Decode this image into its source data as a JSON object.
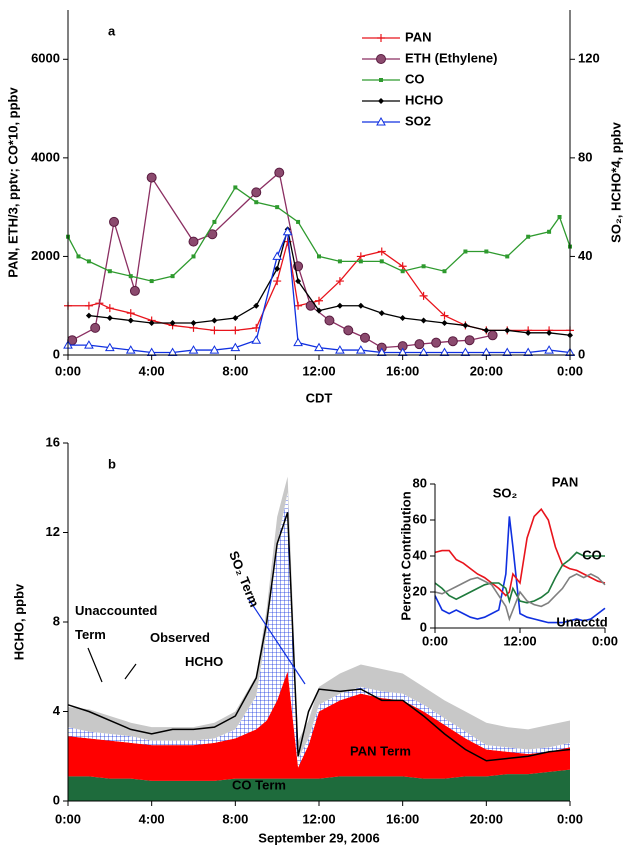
{
  "chart_data": [
    {
      "type": "line",
      "label": "a",
      "xlabel": "CDT",
      "ylabel": "PAN, ETH/3, pptv; CO*10, ppbv",
      "y2label": "SO₂, HCHO*4, ppbv",
      "xlim": [
        0,
        24
      ],
      "xticks": [
        {
          "value": 0,
          "label": "0:00"
        },
        {
          "value": 4,
          "label": "4:00"
        },
        {
          "value": 8,
          "label": "8:00"
        },
        {
          "value": 12,
          "label": "12:00"
        },
        {
          "value": 16,
          "label": "16:00"
        },
        {
          "value": 20,
          "label": "20:00"
        },
        {
          "value": 24,
          "label": "0:00"
        }
      ],
      "ylim": [
        0,
        7000
      ],
      "yticks": [
        0,
        2000,
        4000,
        6000
      ],
      "y2lim": [
        0,
        140
      ],
      "y2ticks": [
        0,
        40,
        80,
        120
      ],
      "legend": "top",
      "series": [
        {
          "name": "PAN",
          "color": "#e8141c",
          "marker": "plus",
          "x": [
            0,
            1,
            1.5,
            2,
            3,
            4,
            5,
            6,
            7,
            8,
            9,
            10,
            10.5,
            11,
            12,
            13,
            14,
            15,
            16,
            17,
            18,
            19,
            20,
            21,
            22,
            23,
            24
          ],
          "values": [
            1000,
            1000,
            1050,
            950,
            850,
            700,
            600,
            550,
            500,
            500,
            550,
            1500,
            2300,
            1000,
            1100,
            1500,
            2000,
            2100,
            1800,
            1200,
            800,
            600,
            500,
            500,
            500,
            500,
            500
          ]
        },
        {
          "name": "ETH (Ethylene)",
          "color": "#8b2f62",
          "marker": "circle",
          "x": [
            0.2,
            1.3,
            2.2,
            3.2,
            4,
            6,
            6.9,
            9,
            10.1,
            11,
            11.6,
            12.5,
            13.4,
            14.2,
            15,
            16,
            16.8,
            17.6,
            18.4,
            19.2,
            20.3
          ],
          "values": [
            300,
            550,
            2700,
            1300,
            3600,
            2300,
            2450,
            3300,
            3700,
            1800,
            1000,
            700,
            500,
            350,
            150,
            180,
            220,
            250,
            280,
            300,
            400
          ]
        },
        {
          "name": "CO",
          "color": "#2e9a2e",
          "marker": "square",
          "x": [
            0,
            0.5,
            1,
            2,
            3,
            4,
            5,
            6,
            7,
            8,
            9,
            10,
            11,
            12,
            13,
            14,
            15,
            16,
            17,
            18,
            19,
            20,
            21,
            22,
            23,
            23.5,
            24
          ],
          "values": [
            2400,
            2000,
            1900,
            1700,
            1600,
            1500,
            1600,
            2000,
            2700,
            3400,
            3100,
            3000,
            2700,
            2000,
            1900,
            1900,
            1900,
            1700,
            1800,
            1700,
            2100,
            2100,
            2000,
            2400,
            2500,
            2800,
            2200
          ]
        },
        {
          "name": "HCHO",
          "color": "#000000",
          "marker": "diamond",
          "axis": "y2",
          "x": [
            1,
            2,
            3,
            4,
            5,
            6,
            7,
            8,
            9,
            10,
            10.5,
            11,
            12,
            13,
            14,
            15,
            16,
            17,
            18,
            19,
            20,
            21,
            22,
            23,
            24
          ],
          "values": [
            16,
            15,
            14,
            13,
            13,
            13,
            14,
            15,
            20,
            35,
            51,
            30,
            18,
            20,
            20,
            17,
            15,
            14,
            13,
            12,
            10,
            10,
            9,
            9,
            8
          ]
        },
        {
          "name": "SO2",
          "color": "#1030e0",
          "marker": "triangle",
          "axis": "y2",
          "x": [
            0,
            1,
            2,
            3,
            4,
            5,
            6,
            7,
            8,
            9,
            10,
            10.5,
            11,
            12,
            13,
            14,
            15,
            16,
            17,
            18,
            19,
            20,
            21,
            22,
            23,
            24
          ],
          "values": [
            4,
            4,
            3,
            2,
            1,
            1,
            2,
            2,
            3,
            6,
            40,
            50,
            5,
            3,
            2,
            2,
            1,
            1,
            1,
            1,
            1,
            1,
            1,
            1,
            2,
            1
          ]
        }
      ]
    },
    {
      "type": "area",
      "label": "b",
      "xlabel": "September 29, 2006",
      "ylabel": "HCHO, ppbv",
      "stacked": true,
      "xlim": [
        0,
        24
      ],
      "xticks": [
        {
          "value": 0,
          "label": "0:00"
        },
        {
          "value": 4,
          "label": "4:00"
        },
        {
          "value": 8,
          "label": "8:00"
        },
        {
          "value": 12,
          "label": "12:00"
        },
        {
          "value": 16,
          "label": "16:00"
        },
        {
          "value": 20,
          "label": "20:00"
        },
        {
          "value": 24,
          "label": "0:00"
        }
      ],
      "ylim": [
        0,
        16
      ],
      "yticks": [
        0,
        4,
        8,
        12,
        16
      ],
      "x": [
        0,
        1,
        2,
        3,
        4,
        5,
        6,
        7,
        8,
        9,
        9.5,
        10,
        10.5,
        11,
        11.5,
        12,
        13,
        14,
        15,
        16,
        17,
        18,
        19,
        20,
        21,
        22,
        23,
        24
      ],
      "series": [
        {
          "name": "CO Term",
          "color": "#1e6b3c",
          "values": [
            1.1,
            1.1,
            1.0,
            1.0,
            0.9,
            0.9,
            0.9,
            0.9,
            1.0,
            1.0,
            1.0,
            1.0,
            1.0,
            1.0,
            1.0,
            1.0,
            1.1,
            1.1,
            1.1,
            1.1,
            1.0,
            1.0,
            1.1,
            1.1,
            1.2,
            1.2,
            1.3,
            1.4
          ]
        },
        {
          "name": "PAN Term",
          "color": "#ff0000",
          "values": [
            1.8,
            1.7,
            1.7,
            1.6,
            1.6,
            1.6,
            1.6,
            1.7,
            1.8,
            2.2,
            2.6,
            3.5,
            4.8,
            0.5,
            1.5,
            3.0,
            3.4,
            3.7,
            3.5,
            3.4,
            3.0,
            2.4,
            1.7,
            1.2,
            1.0,
            0.9,
            0.9,
            1.0
          ]
        },
        {
          "name": "SO₂ Term",
          "color": "#1030e0",
          "hatch": true,
          "values": [
            0.4,
            0.3,
            0.3,
            0.3,
            0.2,
            0.2,
            0.2,
            0.2,
            0.4,
            1.5,
            4.0,
            7.0,
            8.0,
            0.4,
            0.3,
            0.3,
            0.3,
            0.3,
            0.3,
            0.3,
            0.3,
            0.3,
            0.3,
            0.2,
            0.2,
            0.2,
            0.2,
            0.2
          ]
        },
        {
          "name": "Unaccounted Term",
          "color": "#c8c8c8",
          "values": [
            0.9,
            1.0,
            0.8,
            0.6,
            0.6,
            0.6,
            0.6,
            0.7,
            0.8,
            0.9,
            1.0,
            1.2,
            0.7,
            0.8,
            0.8,
            0.8,
            0.9,
            1.0,
            1.0,
            0.9,
            0.8,
            0.8,
            0.9,
            1.0,
            0.9,
            0.9,
            1.0,
            1.0
          ]
        },
        {
          "name": "Observed HCHO",
          "color": "#000000",
          "kind": "line",
          "values": [
            4.3,
            4.0,
            3.6,
            3.2,
            3.0,
            3.2,
            3.2,
            3.3,
            3.8,
            5.5,
            8.0,
            11.5,
            12.9,
            2.0,
            4.0,
            5.0,
            4.9,
            5.0,
            4.5,
            4.5,
            3.8,
            3.0,
            2.3,
            1.8,
            1.9,
            2.0,
            2.2,
            2.3
          ]
        }
      ]
    },
    {
      "type": "line",
      "ylabel": "Percent Contribution",
      "xlim": [
        0,
        24
      ],
      "xticks": [
        {
          "value": 0,
          "label": "0:00"
        },
        {
          "value": 12,
          "label": "12:00"
        },
        {
          "value": 24,
          "label": "0:00"
        }
      ],
      "ylim": [
        0,
        80
      ],
      "yticks": [
        0,
        20,
        40,
        60,
        80
      ],
      "x": [
        0,
        1,
        2,
        3,
        4,
        5,
        6,
        7,
        8,
        9,
        10,
        10.5,
        11,
        12,
        13,
        14,
        15,
        16,
        17,
        18,
        19,
        20,
        21,
        22,
        23,
        24
      ],
      "series": [
        {
          "name": "SO₂",
          "color": "#1030e0",
          "values": [
            18,
            10,
            8,
            10,
            8,
            6,
            5,
            6,
            8,
            10,
            30,
            62,
            45,
            8,
            6,
            5,
            4,
            3,
            3,
            3,
            4,
            5,
            4,
            5,
            8,
            11
          ]
        },
        {
          "name": "PAN",
          "color": "#e8141c",
          "values": [
            42,
            43,
            43,
            38,
            36,
            33,
            30,
            28,
            25,
            22,
            18,
            20,
            30,
            25,
            50,
            62,
            66,
            60,
            45,
            35,
            33,
            32,
            30,
            28,
            26,
            25
          ]
        },
        {
          "name": "CO",
          "color": "#1e7a3c",
          "values": [
            25,
            22,
            18,
            16,
            18,
            20,
            22,
            24,
            25,
            25,
            22,
            15,
            22,
            15,
            14,
            15,
            17,
            20,
            28,
            35,
            38,
            42,
            40,
            40,
            40,
            40
          ]
        },
        {
          "name": "Unacctd",
          "color": "#808080",
          "values": [
            20,
            19,
            21,
            23,
            25,
            27,
            28,
            26,
            24,
            18,
            12,
            5,
            10,
            20,
            15,
            13,
            12,
            14,
            18,
            22,
            28,
            30,
            28,
            30,
            28,
            24
          ]
        }
      ]
    }
  ]
}
